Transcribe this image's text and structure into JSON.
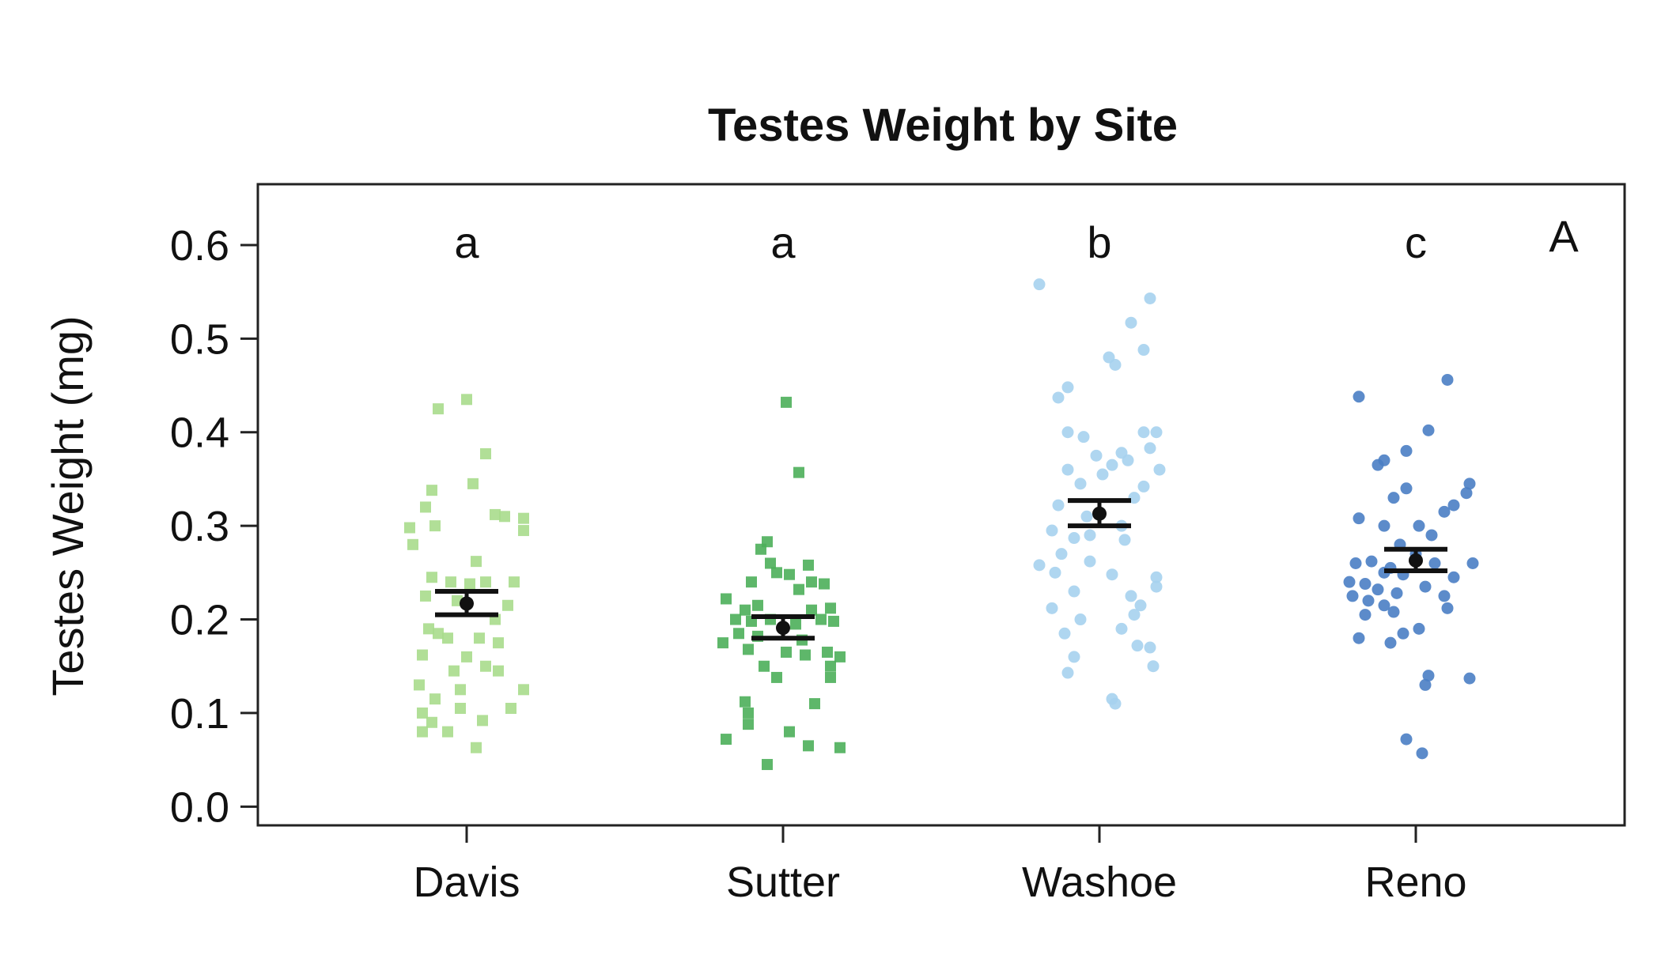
{
  "chart_data": {
    "type": "scatter",
    "title": "Testes Weight by Site",
    "xlabel": "",
    "ylabel": "Testes Weight (mg)",
    "ylim": [
      -0.02,
      0.665
    ],
    "yticks": [
      0.0,
      0.1,
      0.2,
      0.3,
      0.4,
      0.5,
      0.6
    ],
    "ytick_labels": [
      "0.0",
      "0.1",
      "0.2",
      "0.3",
      "0.4",
      "0.5",
      "0.6"
    ],
    "categories": [
      "Davis",
      "Sutter",
      "Washoe",
      "Reno"
    ],
    "group_letters": [
      "a",
      "a",
      "b",
      "c"
    ],
    "panel_label": "A",
    "grid": false,
    "legend": "none",
    "series": [
      {
        "category": "Davis",
        "marker": "square",
        "color": "#a8dc8c",
        "mean": 0.217,
        "ci": [
          0.205,
          0.23
        ],
        "points": [
          {
            "dx": 0.0,
            "y": 0.435
          },
          {
            "dx": -0.09,
            "y": 0.425
          },
          {
            "dx": 0.06,
            "y": 0.377
          },
          {
            "dx": 0.02,
            "y": 0.345
          },
          {
            "dx": -0.11,
            "y": 0.338
          },
          {
            "dx": -0.13,
            "y": 0.32
          },
          {
            "dx": -0.1,
            "y": 0.3
          },
          {
            "dx": -0.18,
            "y": 0.298
          },
          {
            "dx": 0.09,
            "y": 0.312
          },
          {
            "dx": 0.12,
            "y": 0.31
          },
          {
            "dx": 0.18,
            "y": 0.308
          },
          {
            "dx": 0.18,
            "y": 0.295
          },
          {
            "dx": -0.17,
            "y": 0.28
          },
          {
            "dx": 0.03,
            "y": 0.262
          },
          {
            "dx": -0.11,
            "y": 0.245
          },
          {
            "dx": -0.05,
            "y": 0.24
          },
          {
            "dx": 0.01,
            "y": 0.238
          },
          {
            "dx": 0.06,
            "y": 0.24
          },
          {
            "dx": 0.15,
            "y": 0.24
          },
          {
            "dx": -0.13,
            "y": 0.225
          },
          {
            "dx": -0.03,
            "y": 0.22
          },
          {
            "dx": 0.13,
            "y": 0.215
          },
          {
            "dx": 0.09,
            "y": 0.2
          },
          {
            "dx": -0.12,
            "y": 0.19
          },
          {
            "dx": -0.09,
            "y": 0.185
          },
          {
            "dx": -0.06,
            "y": 0.18
          },
          {
            "dx": 0.04,
            "y": 0.18
          },
          {
            "dx": 0.1,
            "y": 0.175
          },
          {
            "dx": -0.14,
            "y": 0.162
          },
          {
            "dx": 0.0,
            "y": 0.16
          },
          {
            "dx": -0.04,
            "y": 0.145
          },
          {
            "dx": 0.06,
            "y": 0.15
          },
          {
            "dx": 0.1,
            "y": 0.145
          },
          {
            "dx": -0.15,
            "y": 0.13
          },
          {
            "dx": -0.02,
            "y": 0.125
          },
          {
            "dx": 0.18,
            "y": 0.125
          },
          {
            "dx": -0.1,
            "y": 0.115
          },
          {
            "dx": -0.14,
            "y": 0.1
          },
          {
            "dx": -0.02,
            "y": 0.105
          },
          {
            "dx": 0.14,
            "y": 0.105
          },
          {
            "dx": -0.11,
            "y": 0.09
          },
          {
            "dx": 0.05,
            "y": 0.092
          },
          {
            "dx": -0.14,
            "y": 0.08
          },
          {
            "dx": -0.06,
            "y": 0.08
          },
          {
            "dx": 0.03,
            "y": 0.063
          }
        ]
      },
      {
        "category": "Sutter",
        "marker": "square",
        "color": "#4daf5a",
        "mean": 0.191,
        "ci": [
          0.18,
          0.203
        ],
        "points": [
          {
            "dx": 0.01,
            "y": 0.432
          },
          {
            "dx": 0.05,
            "y": 0.357
          },
          {
            "dx": -0.05,
            "y": 0.283
          },
          {
            "dx": -0.07,
            "y": 0.275
          },
          {
            "dx": -0.04,
            "y": 0.26
          },
          {
            "dx": 0.08,
            "y": 0.258
          },
          {
            "dx": -0.02,
            "y": 0.25
          },
          {
            "dx": 0.02,
            "y": 0.248
          },
          {
            "dx": 0.09,
            "y": 0.24
          },
          {
            "dx": 0.13,
            "y": 0.238
          },
          {
            "dx": -0.1,
            "y": 0.24
          },
          {
            "dx": 0.05,
            "y": 0.232
          },
          {
            "dx": -0.18,
            "y": 0.222
          },
          {
            "dx": -0.12,
            "y": 0.21
          },
          {
            "dx": -0.08,
            "y": 0.215
          },
          {
            "dx": 0.09,
            "y": 0.21
          },
          {
            "dx": 0.15,
            "y": 0.212
          },
          {
            "dx": -0.15,
            "y": 0.2
          },
          {
            "dx": -0.1,
            "y": 0.198
          },
          {
            "dx": -0.04,
            "y": 0.2
          },
          {
            "dx": 0.04,
            "y": 0.195
          },
          {
            "dx": 0.12,
            "y": 0.2
          },
          {
            "dx": 0.16,
            "y": 0.198
          },
          {
            "dx": -0.14,
            "y": 0.185
          },
          {
            "dx": -0.08,
            "y": 0.182
          },
          {
            "dx": 0.06,
            "y": 0.178
          },
          {
            "dx": -0.19,
            "y": 0.175
          },
          {
            "dx": -0.11,
            "y": 0.168
          },
          {
            "dx": 0.01,
            "y": 0.165
          },
          {
            "dx": 0.07,
            "y": 0.162
          },
          {
            "dx": 0.14,
            "y": 0.165
          },
          {
            "dx": 0.18,
            "y": 0.16
          },
          {
            "dx": -0.06,
            "y": 0.15
          },
          {
            "dx": 0.15,
            "y": 0.15
          },
          {
            "dx": -0.02,
            "y": 0.138
          },
          {
            "dx": 0.15,
            "y": 0.138
          },
          {
            "dx": -0.12,
            "y": 0.112
          },
          {
            "dx": 0.1,
            "y": 0.11
          },
          {
            "dx": -0.11,
            "y": 0.1
          },
          {
            "dx": -0.11,
            "y": 0.088
          },
          {
            "dx": -0.18,
            "y": 0.072
          },
          {
            "dx": 0.02,
            "y": 0.08
          },
          {
            "dx": 0.08,
            "y": 0.065
          },
          {
            "dx": 0.18,
            "y": 0.063
          },
          {
            "dx": -0.05,
            "y": 0.045
          }
        ]
      },
      {
        "category": "Washoe",
        "marker": "circle",
        "color": "#a6d1ee",
        "mean": 0.313,
        "ci": [
          0.3,
          0.327
        ],
        "points": [
          {
            "dx": -0.19,
            "y": 0.558
          },
          {
            "dx": 0.16,
            "y": 0.543
          },
          {
            "dx": 0.1,
            "y": 0.517
          },
          {
            "dx": 0.14,
            "y": 0.488
          },
          {
            "dx": 0.03,
            "y": 0.48
          },
          {
            "dx": 0.05,
            "y": 0.472
          },
          {
            "dx": -0.1,
            "y": 0.448
          },
          {
            "dx": -0.13,
            "y": 0.437
          },
          {
            "dx": -0.1,
            "y": 0.4
          },
          {
            "dx": -0.05,
            "y": 0.395
          },
          {
            "dx": 0.14,
            "y": 0.4
          },
          {
            "dx": 0.18,
            "y": 0.4
          },
          {
            "dx": 0.16,
            "y": 0.383
          },
          {
            "dx": 0.07,
            "y": 0.378
          },
          {
            "dx": -0.01,
            "y": 0.375
          },
          {
            "dx": 0.09,
            "y": 0.37
          },
          {
            "dx": 0.04,
            "y": 0.365
          },
          {
            "dx": 0.01,
            "y": 0.355
          },
          {
            "dx": 0.19,
            "y": 0.36
          },
          {
            "dx": -0.1,
            "y": 0.36
          },
          {
            "dx": -0.06,
            "y": 0.345
          },
          {
            "dx": 0.14,
            "y": 0.342
          },
          {
            "dx": 0.11,
            "y": 0.33
          },
          {
            "dx": -0.13,
            "y": 0.322
          },
          {
            "dx": -0.04,
            "y": 0.31
          },
          {
            "dx": 0.07,
            "y": 0.3
          },
          {
            "dx": -0.15,
            "y": 0.295
          },
          {
            "dx": -0.03,
            "y": 0.29
          },
          {
            "dx": -0.08,
            "y": 0.287
          },
          {
            "dx": 0.08,
            "y": 0.285
          },
          {
            "dx": -0.12,
            "y": 0.27
          },
          {
            "dx": -0.03,
            "y": 0.262
          },
          {
            "dx": -0.19,
            "y": 0.258
          },
          {
            "dx": -0.14,
            "y": 0.25
          },
          {
            "dx": 0.04,
            "y": 0.248
          },
          {
            "dx": 0.18,
            "y": 0.245
          },
          {
            "dx": 0.18,
            "y": 0.235
          },
          {
            "dx": -0.08,
            "y": 0.23
          },
          {
            "dx": 0.1,
            "y": 0.225
          },
          {
            "dx": 0.13,
            "y": 0.215
          },
          {
            "dx": -0.15,
            "y": 0.212
          },
          {
            "dx": 0.11,
            "y": 0.205
          },
          {
            "dx": -0.06,
            "y": 0.2
          },
          {
            "dx": 0.07,
            "y": 0.19
          },
          {
            "dx": -0.11,
            "y": 0.185
          },
          {
            "dx": 0.12,
            "y": 0.172
          },
          {
            "dx": 0.16,
            "y": 0.17
          },
          {
            "dx": -0.08,
            "y": 0.16
          },
          {
            "dx": 0.17,
            "y": 0.15
          },
          {
            "dx": -0.1,
            "y": 0.143
          },
          {
            "dx": 0.04,
            "y": 0.115
          },
          {
            "dx": 0.05,
            "y": 0.11
          }
        ]
      },
      {
        "category": "Reno",
        "marker": "circle",
        "color": "#4a7ec4",
        "mean": 0.263,
        "ci": [
          0.252,
          0.275
        ],
        "points": [
          {
            "dx": 0.1,
            "y": 0.456
          },
          {
            "dx": -0.18,
            "y": 0.438
          },
          {
            "dx": 0.04,
            "y": 0.402
          },
          {
            "dx": -0.03,
            "y": 0.38
          },
          {
            "dx": -0.1,
            "y": 0.37
          },
          {
            "dx": -0.12,
            "y": 0.365
          },
          {
            "dx": 0.17,
            "y": 0.345
          },
          {
            "dx": -0.03,
            "y": 0.34
          },
          {
            "dx": -0.07,
            "y": 0.33
          },
          {
            "dx": 0.16,
            "y": 0.335
          },
          {
            "dx": 0.12,
            "y": 0.322
          },
          {
            "dx": 0.09,
            "y": 0.315
          },
          {
            "dx": -0.18,
            "y": 0.308
          },
          {
            "dx": -0.1,
            "y": 0.3
          },
          {
            "dx": 0.01,
            "y": 0.3
          },
          {
            "dx": 0.05,
            "y": 0.29
          },
          {
            "dx": -0.05,
            "y": 0.28
          },
          {
            "dx": 0.0,
            "y": 0.27
          },
          {
            "dx": -0.19,
            "y": 0.26
          },
          {
            "dx": -0.14,
            "y": 0.262
          },
          {
            "dx": -0.08,
            "y": 0.255
          },
          {
            "dx": 0.06,
            "y": 0.26
          },
          {
            "dx": 0.18,
            "y": 0.26
          },
          {
            "dx": -0.1,
            "y": 0.25
          },
          {
            "dx": -0.04,
            "y": 0.248
          },
          {
            "dx": 0.12,
            "y": 0.245
          },
          {
            "dx": -0.21,
            "y": 0.24
          },
          {
            "dx": -0.16,
            "y": 0.238
          },
          {
            "dx": -0.12,
            "y": 0.232
          },
          {
            "dx": -0.06,
            "y": 0.228
          },
          {
            "dx": 0.03,
            "y": 0.235
          },
          {
            "dx": 0.09,
            "y": 0.225
          },
          {
            "dx": -0.2,
            "y": 0.225
          },
          {
            "dx": -0.15,
            "y": 0.22
          },
          {
            "dx": -0.1,
            "y": 0.215
          },
          {
            "dx": 0.1,
            "y": 0.212
          },
          {
            "dx": -0.16,
            "y": 0.205
          },
          {
            "dx": -0.07,
            "y": 0.208
          },
          {
            "dx": 0.01,
            "y": 0.19
          },
          {
            "dx": -0.04,
            "y": 0.185
          },
          {
            "dx": -0.18,
            "y": 0.18
          },
          {
            "dx": -0.08,
            "y": 0.175
          },
          {
            "dx": 0.04,
            "y": 0.14
          },
          {
            "dx": 0.17,
            "y": 0.137
          },
          {
            "dx": 0.03,
            "y": 0.13
          },
          {
            "dx": -0.03,
            "y": 0.072
          },
          {
            "dx": 0.02,
            "y": 0.057
          }
        ]
      }
    ]
  }
}
